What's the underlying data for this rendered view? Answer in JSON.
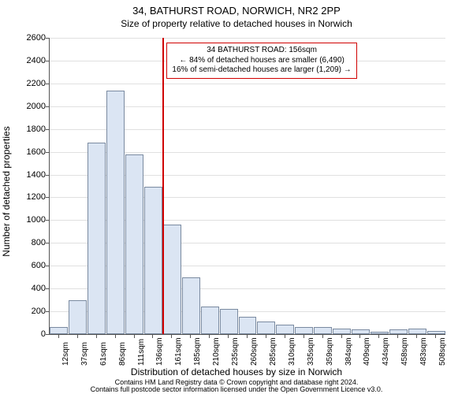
{
  "title_line1": "34, BATHURST ROAD, NORWICH, NR2 2PP",
  "title_line2": "Size of property relative to detached houses in Norwich",
  "y_axis_label": "Number of detached properties",
  "x_axis_label": "Distribution of detached houses by size in Norwich",
  "footer_line1": "Contains HM Land Registry data © Crown copyright and database right 2024.",
  "footer_line2": "Contains full postcode sector information licensed under the Open Government Licence v3.0.",
  "chart": {
    "type": "histogram",
    "background_color": "#ffffff",
    "grid_color": "#e0e0e0",
    "axis_color": "#555555",
    "bar_fill": "#dbe5f3",
    "bar_border": "#7a8aa0",
    "ref_line_color": "#d00000",
    "ylim": [
      0,
      2600
    ],
    "ytick_step": 200,
    "x_categories": [
      "12sqm",
      "37sqm",
      "61sqm",
      "86sqm",
      "111sqm",
      "136sqm",
      "161sqm",
      "185sqm",
      "210sqm",
      "235sqm",
      "260sqm",
      "285sqm",
      "310sqm",
      "335sqm",
      "359sqm",
      "384sqm",
      "409sqm",
      "434sqm",
      "458sqm",
      "483sqm",
      "508sqm"
    ],
    "values": [
      60,
      300,
      1680,
      2140,
      1580,
      1290,
      960,
      500,
      240,
      220,
      150,
      110,
      80,
      60,
      60,
      50,
      40,
      20,
      40,
      50,
      30
    ],
    "bar_width_ratio": 0.96,
    "ref_line_category_index": 6,
    "title_fontsize": 13,
    "subtitle_fontsize": 12,
    "axis_label_fontsize": 12,
    "tick_fontsize": 11,
    "xtick_fontsize": 10
  },
  "annotation": {
    "line1": "34 BATHURST ROAD: 156sqm",
    "line2": "← 84% of detached houses are smaller (6,490)",
    "line3": "16% of semi-detached houses are larger (1,209) →",
    "box_border_color": "#d00000",
    "box_bg_color": "#ffffff",
    "fontsize": 10
  }
}
